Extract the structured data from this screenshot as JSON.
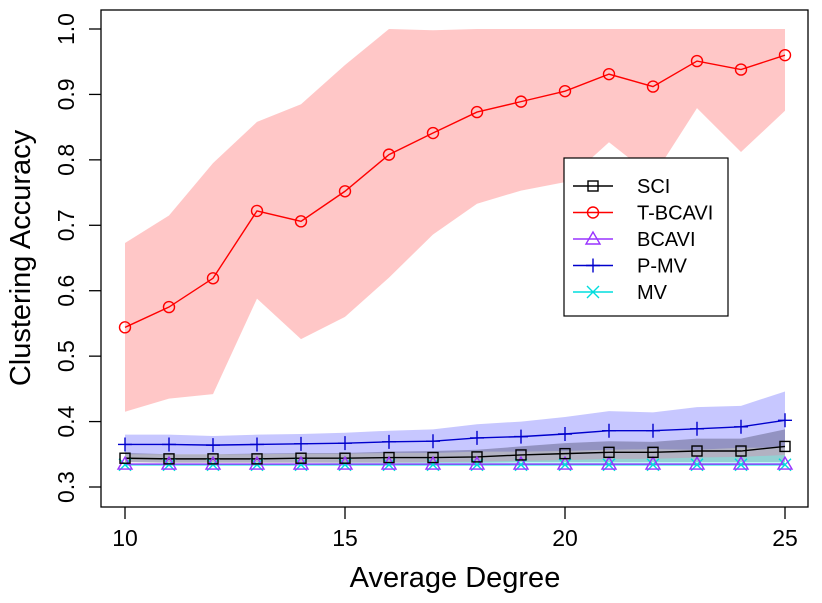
{
  "chart_data": {
    "type": "line",
    "title": "",
    "xlabel": "Average Degree",
    "ylabel": "Clustering Accuracy",
    "xlim": [
      10,
      25
    ],
    "ylim": [
      0.3,
      1.0
    ],
    "x": [
      10,
      11,
      12,
      13,
      14,
      15,
      16,
      17,
      18,
      19,
      20,
      21,
      22,
      23,
      24,
      25
    ],
    "x_ticks": [
      10,
      15,
      20,
      25
    ],
    "x_tick_labels": [
      "10",
      "15",
      "20",
      "25"
    ],
    "y_ticks": [
      0.3,
      0.4,
      0.5,
      0.6,
      0.7,
      0.8,
      0.9,
      1.0
    ],
    "y_tick_labels": [
      "0.3",
      "0.4",
      "0.5",
      "0.6",
      "0.7",
      "0.8",
      "0.9",
      "1.0"
    ],
    "grid": false,
    "legend_position": "right",
    "series": [
      {
        "name": "SCI",
        "color": "#000000",
        "band_color": "#555577",
        "band_opacity": 0.45,
        "marker": "square",
        "values": [
          0.344,
          0.343,
          0.343,
          0.343,
          0.344,
          0.344,
          0.345,
          0.345,
          0.346,
          0.349,
          0.351,
          0.353,
          0.353,
          0.355,
          0.355,
          0.362
        ],
        "lower": [
          0.338,
          0.337,
          0.337,
          0.337,
          0.337,
          0.337,
          0.337,
          0.337,
          0.337,
          0.338,
          0.338,
          0.338,
          0.338,
          0.338,
          0.338,
          0.338
        ],
        "upper": [
          0.352,
          0.35,
          0.35,
          0.351,
          0.352,
          0.352,
          0.354,
          0.355,
          0.357,
          0.362,
          0.367,
          0.37,
          0.369,
          0.374,
          0.374,
          0.388
        ]
      },
      {
        "name": "T-BCAVI",
        "color": "#ff0000",
        "band_color": "#ff9999",
        "band_opacity": 0.55,
        "marker": "circle",
        "values": [
          0.544,
          0.575,
          0.619,
          0.722,
          0.706,
          0.752,
          0.808,
          0.841,
          0.873,
          0.889,
          0.905,
          0.931,
          0.912,
          0.951,
          0.938,
          0.96
        ],
        "lower": [
          0.415,
          0.435,
          0.442,
          0.588,
          0.526,
          0.56,
          0.62,
          0.686,
          0.733,
          0.753,
          0.766,
          0.827,
          0.774,
          0.879,
          0.812,
          0.875
        ],
        "upper": [
          0.673,
          0.715,
          0.795,
          0.858,
          0.885,
          0.945,
          1.0,
          0.998,
          1.0,
          1.0,
          1.0,
          1.0,
          1.0,
          1.0,
          1.0,
          1.0
        ]
      },
      {
        "name": "BCAVI",
        "color": "#9933ff",
        "band_color": "#cc99ff",
        "band_opacity": 0.4,
        "marker": "triangle",
        "values": [
          0.335,
          0.335,
          0.335,
          0.335,
          0.335,
          0.335,
          0.335,
          0.335,
          0.335,
          0.335,
          0.335,
          0.335,
          0.335,
          0.335,
          0.335,
          0.335
        ],
        "lower": [
          0.334,
          0.334,
          0.334,
          0.334,
          0.334,
          0.334,
          0.334,
          0.334,
          0.334,
          0.334,
          0.334,
          0.334,
          0.334,
          0.334,
          0.334,
          0.334
        ],
        "upper": [
          0.336,
          0.336,
          0.336,
          0.336,
          0.336,
          0.336,
          0.336,
          0.336,
          0.336,
          0.336,
          0.336,
          0.336,
          0.336,
          0.336,
          0.336,
          0.336
        ]
      },
      {
        "name": "P-MV",
        "color": "#0000cc",
        "band_color": "#9999ff",
        "band_opacity": 0.55,
        "marker": "plus",
        "values": [
          0.365,
          0.365,
          0.364,
          0.365,
          0.366,
          0.367,
          0.369,
          0.37,
          0.375,
          0.377,
          0.381,
          0.386,
          0.386,
          0.389,
          0.392,
          0.402
        ],
        "lower": [
          0.35,
          0.35,
          0.35,
          0.35,
          0.351,
          0.351,
          0.352,
          0.352,
          0.354,
          0.354,
          0.355,
          0.357,
          0.358,
          0.357,
          0.36,
          0.36
        ],
        "upper": [
          0.38,
          0.38,
          0.378,
          0.38,
          0.381,
          0.383,
          0.386,
          0.388,
          0.396,
          0.4,
          0.407,
          0.416,
          0.414,
          0.422,
          0.424,
          0.446
        ]
      },
      {
        "name": "MV",
        "color": "#00dddd",
        "band_color": "#66ffee",
        "band_opacity": 0.4,
        "marker": "cross",
        "values": [
          0.334,
          0.334,
          0.334,
          0.334,
          0.334,
          0.334,
          0.334,
          0.334,
          0.334,
          0.334,
          0.334,
          0.334,
          0.334,
          0.334,
          0.334,
          0.334
        ],
        "lower": [
          0.333,
          0.333,
          0.333,
          0.333,
          0.333,
          0.333,
          0.333,
          0.333,
          0.333,
          0.333,
          0.333,
          0.333,
          0.333,
          0.333,
          0.333,
          0.333
        ],
        "upper": [
          0.336,
          0.336,
          0.336,
          0.336,
          0.336,
          0.337,
          0.337,
          0.338,
          0.339,
          0.34,
          0.341,
          0.343,
          0.343,
          0.345,
          0.346,
          0.349
        ]
      }
    ]
  }
}
